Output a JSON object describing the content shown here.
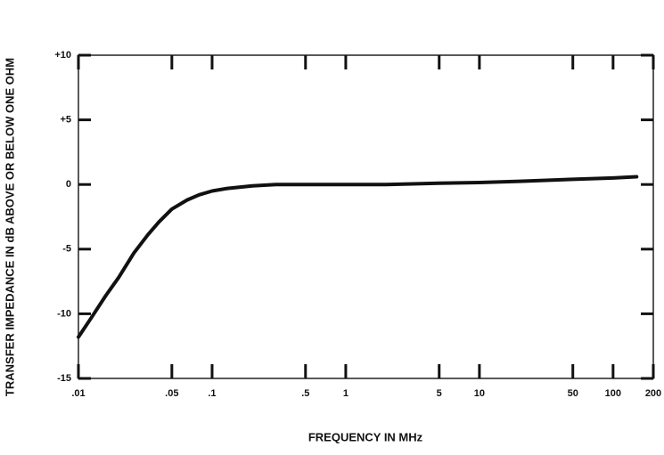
{
  "chart_data": {
    "type": "line",
    "x_label": "FREQUENCY IN MHz",
    "y_label": "TRANSFER IMPEDANCE IN dB ABOVE OR BELOW ONE OHM",
    "x": [
      0.01,
      0.0125,
      0.016,
      0.02,
      0.026,
      0.033,
      0.04,
      0.05,
      0.065,
      0.08,
      0.1,
      0.13,
      0.2,
      0.3,
      0.5,
      1,
      2,
      5,
      10,
      20,
      50,
      100,
      150
    ],
    "values": [
      -11.8,
      -10.3,
      -8.6,
      -7.2,
      -5.3,
      -3.9,
      -2.9,
      -1.9,
      -1.2,
      -0.8,
      -0.5,
      -0.3,
      -0.1,
      0,
      0,
      0,
      0,
      0.1,
      0.15,
      0.25,
      0.4,
      0.5,
      0.6
    ],
    "color": "#111111",
    "log_x": true,
    "xlim": [
      0.01,
      200
    ],
    "xticks": [
      {
        "value": 0.01,
        "label": ".01"
      },
      {
        "value": 0.05,
        "label": ".05"
      },
      {
        "value": 0.1,
        "label": ".1"
      },
      {
        "value": 0.5,
        "label": ".5"
      },
      1,
      5,
      10,
      50,
      100,
      200
    ],
    "ylim": [
      -15,
      10
    ],
    "yticks": [
      -15,
      -10,
      -5,
      0,
      {
        "value": 5,
        "label": "+5"
      },
      {
        "value": 10,
        "label": "+10"
      }
    ]
  }
}
